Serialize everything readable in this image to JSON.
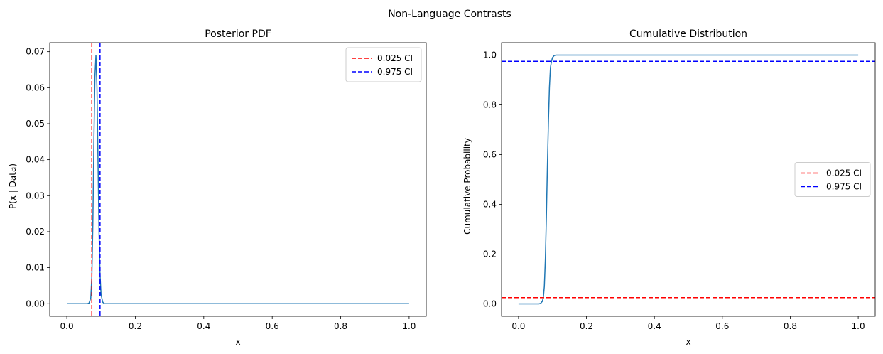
{
  "figure": {
    "suptitle": "Non-Language Contrasts"
  },
  "colors": {
    "curve": "#1f77b4",
    "ci_lower": "#ff0000",
    "ci_upper": "#0000ff",
    "spine": "#000000",
    "legend_border": "#cccccc"
  },
  "chart_data": [
    {
      "type": "line",
      "title": "Posterior PDF",
      "xlabel": "x",
      "ylabel": "P(x | Data)",
      "xlim": [
        -0.05,
        1.05
      ],
      "ylim": [
        -0.0035,
        0.0725
      ],
      "xticks": [
        0.0,
        0.2,
        0.4,
        0.6,
        0.8,
        1.0
      ],
      "xtick_labels": [
        "0.0",
        "0.2",
        "0.4",
        "0.6",
        "0.8",
        "1.0"
      ],
      "yticks": [
        0.0,
        0.01,
        0.02,
        0.03,
        0.04,
        0.05,
        0.06,
        0.07
      ],
      "ytick_labels": [
        "0.00",
        "0.01",
        "0.02",
        "0.03",
        "0.04",
        "0.05",
        "0.06",
        "0.07"
      ],
      "grid": false,
      "legend_position": "upper right",
      "series": [
        {
          "x": [
            0.0,
            0.06,
            0.065,
            0.07,
            0.073,
            0.076,
            0.079,
            0.082,
            0.085,
            0.088,
            0.091,
            0.094,
            0.097,
            0.1,
            0.105,
            0.11,
            0.2,
            0.4,
            0.6,
            0.8,
            1.0
          ],
          "y": [
            0.0,
            0.0,
            0.0002,
            0.0016,
            0.0075,
            0.022,
            0.045,
            0.063,
            0.069,
            0.06,
            0.04,
            0.02,
            0.008,
            0.0025,
            0.0004,
            0.0,
            0.0,
            0.0,
            0.0,
            0.0,
            0.0
          ],
          "color_key": "curve"
        }
      ],
      "vlines": [
        {
          "name": "0.025 CI",
          "x": 0.073,
          "color_key": "ci_lower"
        },
        {
          "name": "0.975 CI",
          "x": 0.097,
          "color_key": "ci_upper"
        }
      ]
    },
    {
      "type": "line",
      "title": "Cumulative Distribution",
      "xlabel": "x",
      "ylabel": "Cumulative Probability",
      "xlim": [
        -0.05,
        1.05
      ],
      "ylim": [
        -0.05,
        1.05
      ],
      "xticks": [
        0.0,
        0.2,
        0.4,
        0.6,
        0.8,
        1.0
      ],
      "xtick_labels": [
        "0.0",
        "0.2",
        "0.4",
        "0.6",
        "0.8",
        "1.0"
      ],
      "yticks": [
        0.0,
        0.2,
        0.4,
        0.6,
        0.8,
        1.0
      ],
      "ytick_labels": [
        "0.0",
        "0.2",
        "0.4",
        "0.6",
        "0.8",
        "1.0"
      ],
      "grid": false,
      "legend_position": "center right",
      "series": [
        {
          "x": [
            0.0,
            0.06,
            0.065,
            0.07,
            0.073,
            0.076,
            0.079,
            0.082,
            0.085,
            0.088,
            0.091,
            0.094,
            0.097,
            0.1,
            0.105,
            0.11,
            0.2,
            0.4,
            0.6,
            0.8,
            1.0
          ],
          "y": [
            0.0,
            0.0,
            0.002,
            0.01,
            0.025,
            0.07,
            0.18,
            0.35,
            0.55,
            0.73,
            0.87,
            0.95,
            0.975,
            0.99,
            0.998,
            1.0,
            1.0,
            1.0,
            1.0,
            1.0,
            1.0
          ],
          "color_key": "curve"
        }
      ],
      "hlines": [
        {
          "name": "0.025 CI",
          "y": 0.025,
          "color_key": "ci_lower"
        },
        {
          "name": "0.975 CI",
          "y": 0.975,
          "color_key": "ci_upper"
        }
      ]
    }
  ]
}
